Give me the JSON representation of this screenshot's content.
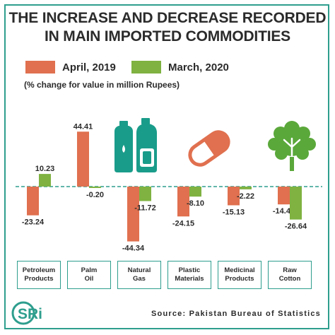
{
  "title_line1": "THE INCREASE  AND DECREASE RECORDED",
  "title_line2": "IN MAIN IMPORTED COMMODITIES",
  "note": "(% change for value in million Rupees)",
  "source": "Source: Pakistan Bureau of Statistics",
  "logo_text": "SRi",
  "colors": {
    "april": "#e0704f",
    "march": "#7fb241",
    "accent": "#2e9e8e",
    "icon": "#1a9c8a",
    "capsule": "#e0704f",
    "tree": "#5aa83a"
  },
  "icons": [
    "bottles-icon",
    "capsule-icon",
    "cotton-plant-icon"
  ],
  "chart_data": {
    "type": "bar",
    "title": "THE INCREASE  AND DECREASE RECORDED IN MAIN IMPORTED COMMODITIES",
    "ylabel": "(% change for value in million Rupees)",
    "categories": [
      "Petroleum\nProducts",
      "Palm\nOil",
      "Natural\nGas",
      "Plastic\nMaterials",
      "Medicinal\nProducts",
      "Raw\nCotton"
    ],
    "series": [
      {
        "name": "April, 2019",
        "values": [
          -23.24,
          44.41,
          -44.34,
          -24.15,
          -15.13,
          -14.4
        ],
        "labels": [
          "-23.24",
          "44.41",
          "-44.34",
          "-24.15",
          "-15.13",
          "-14.40"
        ]
      },
      {
        "name": "March, 2020",
        "values": [
          10.23,
          -0.2,
          -11.72,
          -8.1,
          -2.22,
          -26.64
        ],
        "labels": [
          "10.23",
          "-0.20",
          "-11.72",
          "-8.10",
          "-2.22",
          "-26.64"
        ]
      }
    ],
    "ylim": [
      -50,
      50
    ],
    "grid": false,
    "legend": "top"
  }
}
